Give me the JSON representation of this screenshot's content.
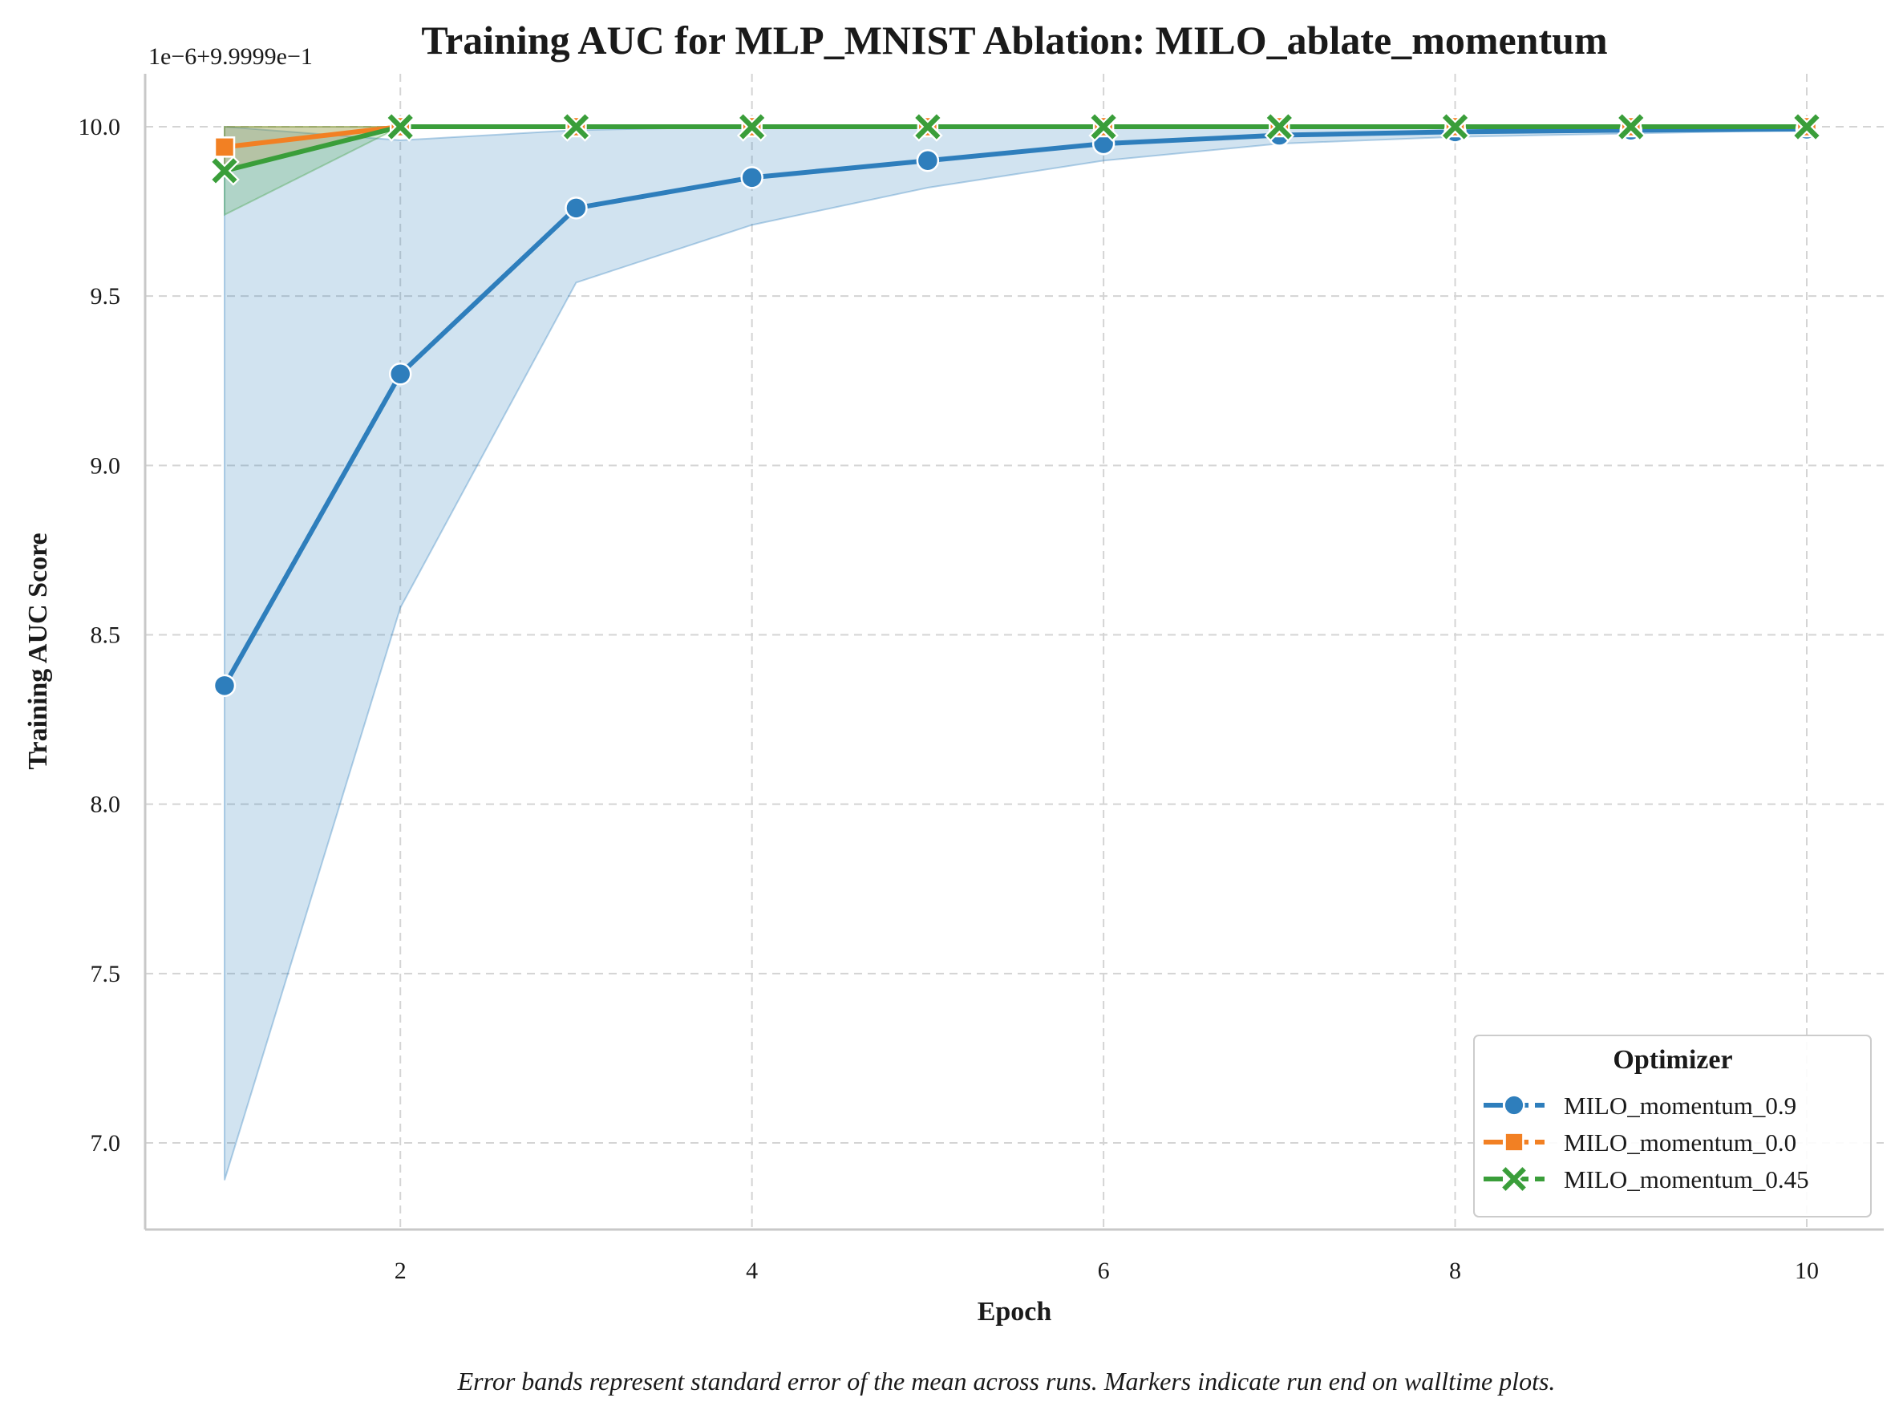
{
  "chart_data": {
    "type": "line",
    "title": "Training AUC for MLP_MNIST Ablation: MILO_ablate_momentum",
    "xlabel": "Epoch",
    "ylabel": "Training AUC Score",
    "offset_text": "1e−6+9.9999e−1",
    "caption": "Error bands represent standard error of the mean across runs. Markers indicate run end on walltime plots.",
    "xlim": [
      0.5,
      10.45
    ],
    "ylim": [
      6.73,
      10.16
    ],
    "x_ticks": [
      2,
      4,
      6,
      8,
      10
    ],
    "x_tick_labels": [
      "2",
      "4",
      "6",
      "8",
      "10"
    ],
    "y_ticks": [
      7.0,
      7.5,
      8.0,
      8.5,
      9.0,
      9.5,
      10.0
    ],
    "y_tick_labels": [
      "7.0",
      "7.5",
      "8.0",
      "8.5",
      "9.0",
      "9.5",
      "10.0"
    ],
    "grid": true,
    "legend_title": "Optimizer",
    "legend_position": "lower-right",
    "series": [
      {
        "name": "MILO_momentum_0.9",
        "color": "#2e7ebc",
        "marker": "circle",
        "x": [
          1,
          2,
          3,
          4,
          5,
          6,
          7,
          8,
          9,
          10
        ],
        "y": [
          8.35,
          9.27,
          9.76,
          9.85,
          9.9,
          9.95,
          9.975,
          9.985,
          9.99,
          9.993
        ],
        "band_lower": [
          6.89,
          8.58,
          9.54,
          9.71,
          9.82,
          9.9,
          9.95,
          9.97,
          9.98,
          9.99
        ],
        "band_upper": [
          10.0,
          9.96,
          9.99,
          10.0,
          10.0,
          10.0,
          10.0,
          10.0,
          10.0,
          10.0
        ]
      },
      {
        "name": "MILO_momentum_0.0",
        "color": "#f28023",
        "marker": "square",
        "x": [
          1,
          2,
          3,
          4,
          5,
          6,
          7,
          8,
          9,
          10
        ],
        "y": [
          9.94,
          10.0,
          10.0,
          10.0,
          10.0,
          10.0,
          10.0,
          10.0,
          10.0,
          10.0
        ],
        "band_lower": [
          9.87,
          10.0,
          10.0,
          10.0,
          10.0,
          10.0,
          10.0,
          10.0,
          10.0,
          10.0
        ],
        "band_upper": [
          10.0,
          10.0,
          10.0,
          10.0,
          10.0,
          10.0,
          10.0,
          10.0,
          10.0,
          10.0
        ]
      },
      {
        "name": "MILO_momentum_0.45",
        "color": "#3a9e3a",
        "marker": "x",
        "x": [
          1,
          2,
          3,
          4,
          5,
          6,
          7,
          8,
          9,
          10
        ],
        "y": [
          9.87,
          10.0,
          10.0,
          10.0,
          10.0,
          10.0,
          10.0,
          10.0,
          10.0,
          10.0
        ],
        "band_lower": [
          9.74,
          10.0,
          10.0,
          10.0,
          10.0,
          10.0,
          10.0,
          10.0,
          10.0,
          10.0
        ],
        "band_upper": [
          10.0,
          10.0,
          10.0,
          10.0,
          10.0,
          10.0,
          10.0,
          10.0,
          10.0,
          10.0
        ]
      }
    ]
  }
}
